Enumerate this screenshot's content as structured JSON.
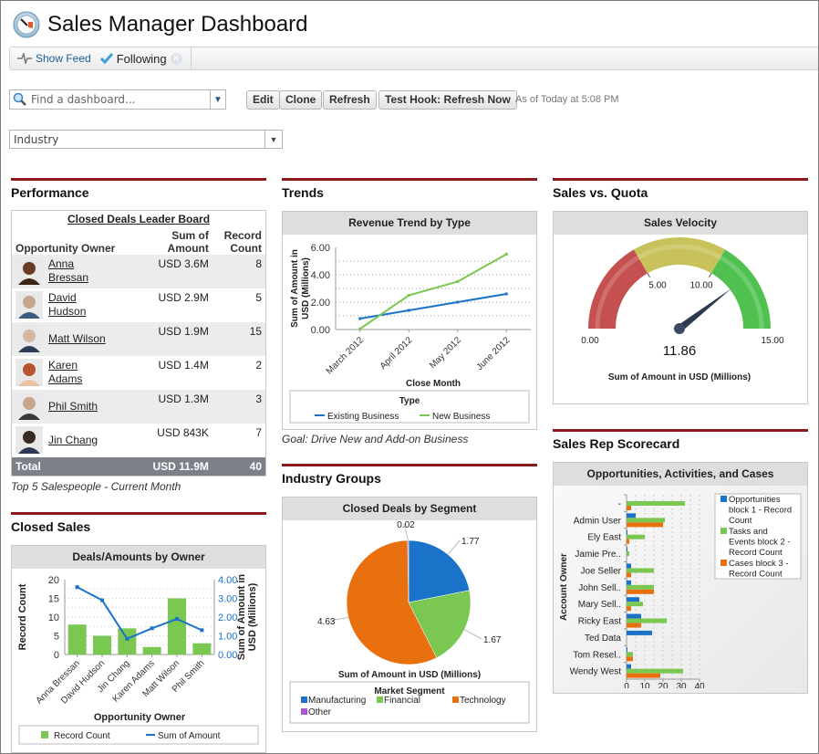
{
  "header": {
    "title": "Sales Manager Dashboard",
    "icon": "gauge-icon"
  },
  "feed": {
    "show_feed": "Show Feed",
    "following": "Following"
  },
  "toolbar": {
    "search_placeholder": "Find a dashboard...",
    "edit": "Edit",
    "clone": "Clone",
    "refresh": "Refresh",
    "test_hook": "Test Hook: Refresh Now",
    "as_of": "As of Today at 5:08 PM",
    "filter_value": "Industry"
  },
  "colors": {
    "section_bar": "#8b1a1a",
    "blue": "#1a73c9",
    "green": "#7ac752",
    "orange": "#e8700f",
    "purple": "#a855d6"
  },
  "performance": {
    "section_title": "Performance",
    "table_title": "Closed Deals Leader Board",
    "col_owner": "Opportunity Owner",
    "col_amount_1": "Sum of",
    "col_amount_2": "Amount",
    "col_count_1": "Record",
    "col_count_2": "Count",
    "rows": [
      {
        "name_1": "Anna",
        "name_2": "Bressan",
        "amount": "USD 3.6M",
        "count": "8"
      },
      {
        "name_1": "David",
        "name_2": "Hudson",
        "amount": "USD 2.9M",
        "count": "5"
      },
      {
        "name_1": "Matt Wilson",
        "name_2": "",
        "amount": "USD 1.9M",
        "count": "15"
      },
      {
        "name_1": "Karen",
        "name_2": "Adams",
        "amount": "USD 1.4M",
        "count": "2"
      },
      {
        "name_1": "Phil Smith",
        "name_2": "",
        "amount": "USD 1.3M",
        "count": "3"
      },
      {
        "name_1": "Jin Chang",
        "name_2": "",
        "amount": "USD 843K",
        "count": "7"
      }
    ],
    "total_label": "Total",
    "total_amount": "USD 11.9M",
    "total_count": "40",
    "footnote": "Top 5 Salespeople - Current Month"
  },
  "closed_sales": {
    "section_title": "Closed Sales",
    "panel_title": "Deals/Amounts by Owner"
  },
  "trends": {
    "section_title": "Trends",
    "panel_title": "Revenue Trend by Type",
    "footnote": "Goal: Drive New and Add-on Business"
  },
  "industry": {
    "section_title": "Industry Groups",
    "panel_title": "Closed Deals by Segment"
  },
  "quota": {
    "section_title": "Sales vs. Quota",
    "panel_title": "Sales Velocity"
  },
  "scorecard": {
    "section_title": "Sales Rep Scorecard",
    "panel_title": "Opportunities, Activities, and Cases"
  },
  "chart_data": [
    {
      "id": "deals_by_owner",
      "type": "bar",
      "title": "Deals/Amounts by Owner",
      "xlabel": "Opportunity Owner",
      "ylabel": "Record Count",
      "y2label_1": "Sum of Amount in",
      "y2label_2": "USD (Millions)",
      "categories": [
        "Anna Bressan",
        "David Hudson",
        "Jin Chang",
        "Karen Adams",
        "Matt Wilson",
        "Phil Smith"
      ],
      "ylim": [
        0,
        20
      ],
      "y2lim": [
        0,
        4
      ],
      "yticks": [
        "0",
        "5",
        "10",
        "15",
        "20"
      ],
      "y2ticks": [
        "0.00",
        "1.00",
        "2.00",
        "3.00",
        "4.00"
      ],
      "series": [
        {
          "name": "Record Count",
          "type": "bar",
          "axis": "left",
          "values": [
            8,
            5,
            7,
            2,
            15,
            3
          ]
        },
        {
          "name": "Sum of Amount",
          "type": "line",
          "axis": "right",
          "values": [
            3.6,
            2.9,
            0.84,
            1.4,
            1.9,
            1.3
          ]
        }
      ],
      "legend": "bottom"
    },
    {
      "id": "revenue_trend",
      "type": "line",
      "title": "Revenue Trend by Type",
      "xlabel": "Close Month",
      "ylabel_1": "Sum of Amount in",
      "ylabel_2": "USD (Millions)",
      "categories": [
        "March 2012",
        "April 2012",
        "May 2012",
        "June 2012"
      ],
      "ylim": [
        0,
        6
      ],
      "yticks": [
        "0.00",
        "2.00",
        "4.00",
        "6.00"
      ],
      "legend_title": "Type",
      "series": [
        {
          "name": "Existing Business",
          "values": [
            0.8,
            1.4,
            2.0,
            2.6
          ]
        },
        {
          "name": "New Business",
          "values": [
            0.05,
            2.5,
            3.5,
            5.5
          ]
        }
      ],
      "legend": "bottom"
    },
    {
      "id": "deals_by_segment",
      "type": "pie",
      "title": "Closed Deals by Segment",
      "xlabel": "Sum of Amount in USD (Millions)",
      "legend_title": "Market Segment",
      "categories": [
        "Manufacturing",
        "Financial",
        "Technology",
        "Other"
      ],
      "values": [
        1.77,
        1.67,
        4.63,
        0.02
      ],
      "labels": [
        "1.77",
        "1.67",
        "4.63",
        "0.02"
      ],
      "legend": "bottom"
    },
    {
      "id": "sales_velocity",
      "type": "gauge",
      "title": "Sales Velocity",
      "value": 11.86,
      "value_label": "11.86",
      "range": [
        0,
        15
      ],
      "bands": [
        5,
        10
      ],
      "tick_labels": [
        "0.00",
        "5.00",
        "10.00",
        "15.00"
      ],
      "xlabel": "Sum of Amount in USD (Millions)"
    },
    {
      "id": "scorecard",
      "type": "bar",
      "orientation": "horizontal",
      "title": "Opportunities, Activities, and Cases",
      "ylabel": "Account Owner",
      "categories": [
        "-",
        "Admin User",
        "Ely East",
        "Jamie Pre..",
        "Joe Seller",
        "John Sell..",
        "Mary Sell..",
        "Ricky East",
        "Ted Data",
        "Tom Resel..",
        "Wendy West"
      ],
      "xlim": [
        0,
        40
      ],
      "xticks": [
        "0",
        "10",
        "20",
        "30",
        "40"
      ],
      "series": [
        {
          "name": "Opportunities block 1 - Record Count",
          "legend_lines": [
            "Opportunities",
            "block 1 - Record",
            "Count"
          ],
          "values": [
            0,
            5,
            0.5,
            0.5,
            2.5,
            2.5,
            7,
            8,
            14,
            0.5,
            2.5
          ]
        },
        {
          "name": "Tasks and Events block 2 - Record Count",
          "legend_lines": [
            "Tasks and",
            "Events block 2 -",
            "Record Count"
          ],
          "values": [
            32,
            21,
            10,
            1.5,
            15,
            15,
            9,
            22,
            0,
            3.5,
            31
          ]
        },
        {
          "name": "Cases block 3 - Record Count",
          "legend_lines": [
            "Cases block 3 -",
            "Record Count"
          ],
          "values": [
            2.5,
            20,
            1.5,
            0,
            2.5,
            15,
            2.5,
            8,
            0,
            3.5,
            18.5
          ]
        }
      ],
      "legend": "right"
    }
  ]
}
